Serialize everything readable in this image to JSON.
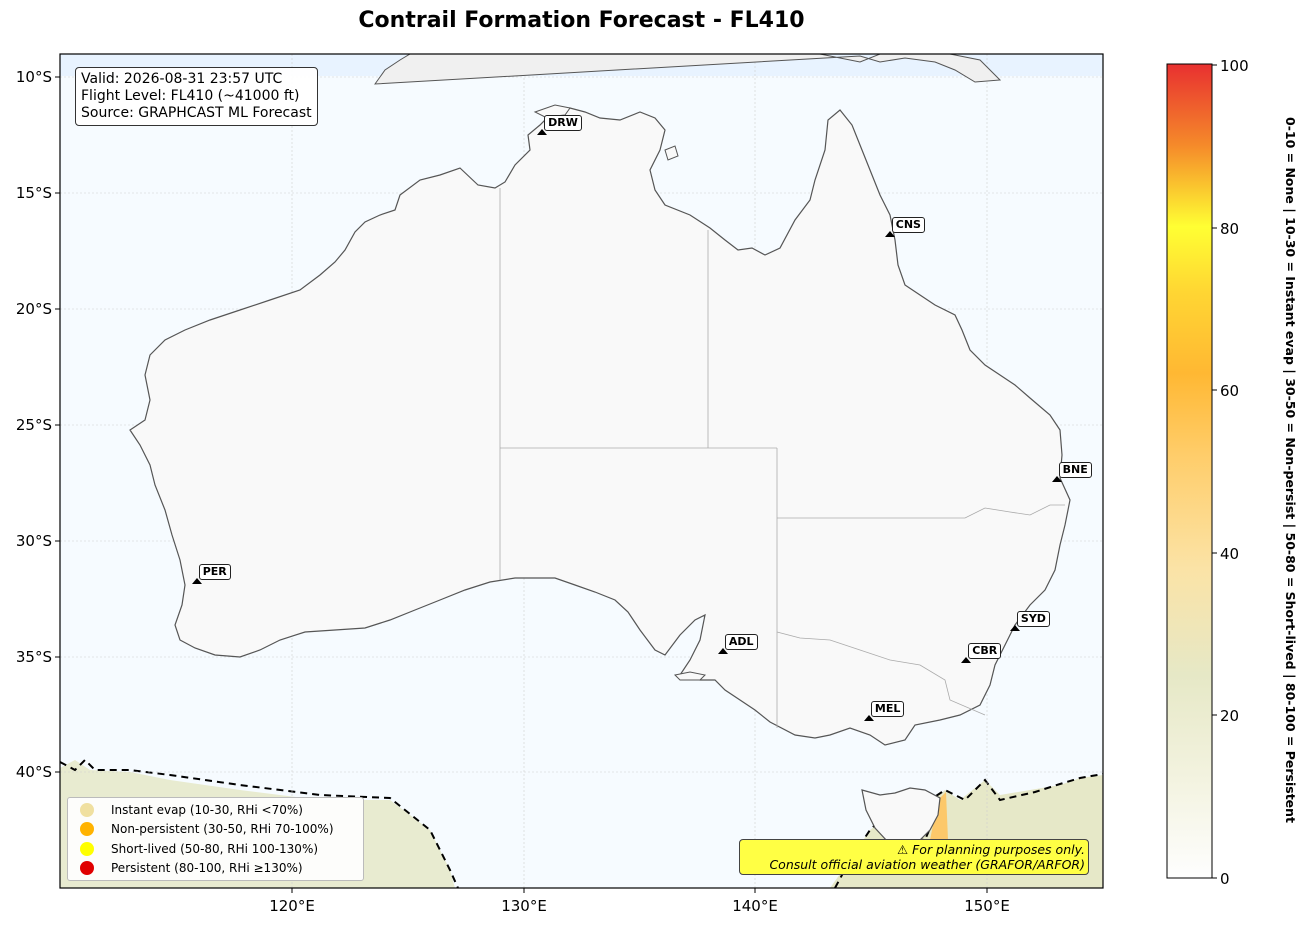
{
  "title": "Contrail Formation Forecast - FL410",
  "info": {
    "valid": "Valid: 2026-08-31 23:57 UTC",
    "flight_level": "Flight Level: FL410 (~41000 ft)",
    "source": "Source: GRAPHCAST ML Forecast"
  },
  "axes": {
    "lat_ticks": [
      "10°S",
      "15°S",
      "20°S",
      "25°S",
      "30°S",
      "35°S",
      "40°S"
    ],
    "lon_ticks": [
      "120°E",
      "130°E",
      "140°E",
      "150°E"
    ]
  },
  "cities": [
    {
      "code": "DRW",
      "lon": 130.8,
      "lat": -12.5
    },
    {
      "code": "CNS",
      "lon": 145.8,
      "lat": -16.9
    },
    {
      "code": "BNE",
      "lon": 153.0,
      "lat": -27.5
    },
    {
      "code": "PER",
      "lon": 115.9,
      "lat": -31.9
    },
    {
      "code": "SYD",
      "lon": 151.2,
      "lat": -33.9
    },
    {
      "code": "ADL",
      "lon": 138.6,
      "lat": -34.9
    },
    {
      "code": "CBR",
      "lon": 149.1,
      "lat": -35.3
    },
    {
      "code": "MEL",
      "lon": 144.9,
      "lat": -37.8
    }
  ],
  "legend": [
    {
      "label": "Instant evap (10-30, RHi <70%)",
      "color": "#f0e0a0"
    },
    {
      "label": "Non-persistent (30-50, RHi 70-100%)",
      "color": "#ffb300"
    },
    {
      "label": "Short-lived (50-80, RHi 100-130%)",
      "color": "#ffff00"
    },
    {
      "label": "Persistent (80-100, RHi ≥130%)",
      "color": "#e00000"
    }
  ],
  "warning": {
    "line1": "⚠ For planning purposes only.",
    "line2": "Consult official aviation weather (GRAFOR/ARFOR)"
  },
  "colorbar": {
    "ticks": [
      "0",
      "20",
      "40",
      "60",
      "80",
      "100"
    ],
    "label": "0-10 = None  |  10-30 = Instant evap  |  30-50 = Non-persist  |  50-80 = Short-lived  |  80-100 = Persistent"
  }
}
